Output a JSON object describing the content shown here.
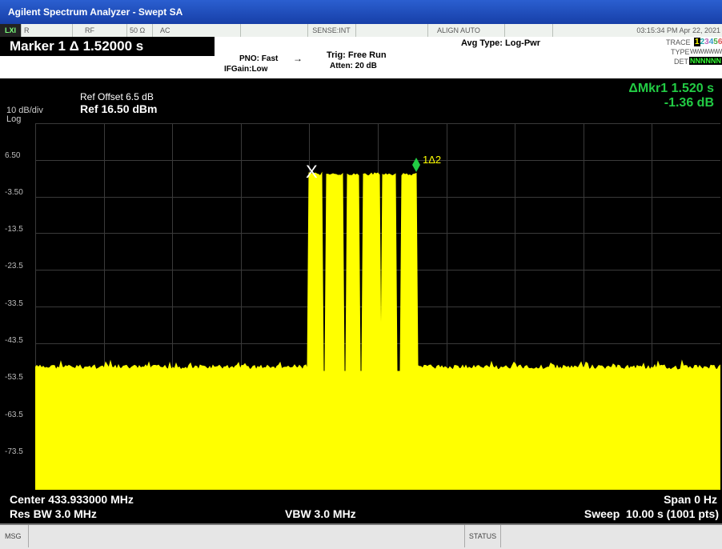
{
  "window_title": "Agilent Spectrum Analyzer - Swept SA",
  "status_row": {
    "logo": "LXI",
    "r": "R",
    "rf": "RF",
    "impedance": "50 Ω",
    "coupling": "AC",
    "sense": "SENSE:INT",
    "align": "ALIGN AUTO",
    "datetime": "03:15:34 PM Apr 22, 2021"
  },
  "marker": {
    "title": "Marker 1 Δ 1.52000 s",
    "readout_line1": "ΔMkr1 1.520 s",
    "readout_line2": "-1.36 dB",
    "label": "1Δ2",
    "x_label": "X"
  },
  "settings": {
    "pno": "PNO: Fast",
    "ifgain": "IFGain:Low",
    "trig": "Trig: Free Run",
    "atten": "Atten: 20 dB",
    "avg_type": "Avg Type: Log-Pwr",
    "trace_label": "TRACE",
    "trace_digits": [
      "1",
      "2",
      "3",
      "4",
      "5",
      "6"
    ],
    "type_label": "TYPE",
    "type_value": "WWWWWW",
    "det_label": "DET",
    "det_value": "NNNNNN"
  },
  "display": {
    "scale": "10 dB/div",
    "scale_type": "Log",
    "ref_offset": "Ref Offset 6.5 dB",
    "ref_level": "Ref 16.50 dBm",
    "y_labels": [
      "6.50",
      "-3.50",
      "-13.5",
      "-23.5",
      "-33.5",
      "-43.5",
      "-53.5",
      "-63.5",
      "-73.5"
    ]
  },
  "bottom": {
    "center": "Center 433.933000 MHz",
    "span": "Span 0 Hz",
    "res_bw": "Res BW 3.0 MHz",
    "vbw": "VBW 3.0 MHz",
    "sweep": "Sweep  10.00 s (1001 pts)"
  },
  "msg_bar": {
    "msg": "MSG",
    "status": "STATUS"
  },
  "colors": {
    "trace": "#ffff00",
    "marker": "#22cc44",
    "grid": "#3a3a3a"
  }
}
